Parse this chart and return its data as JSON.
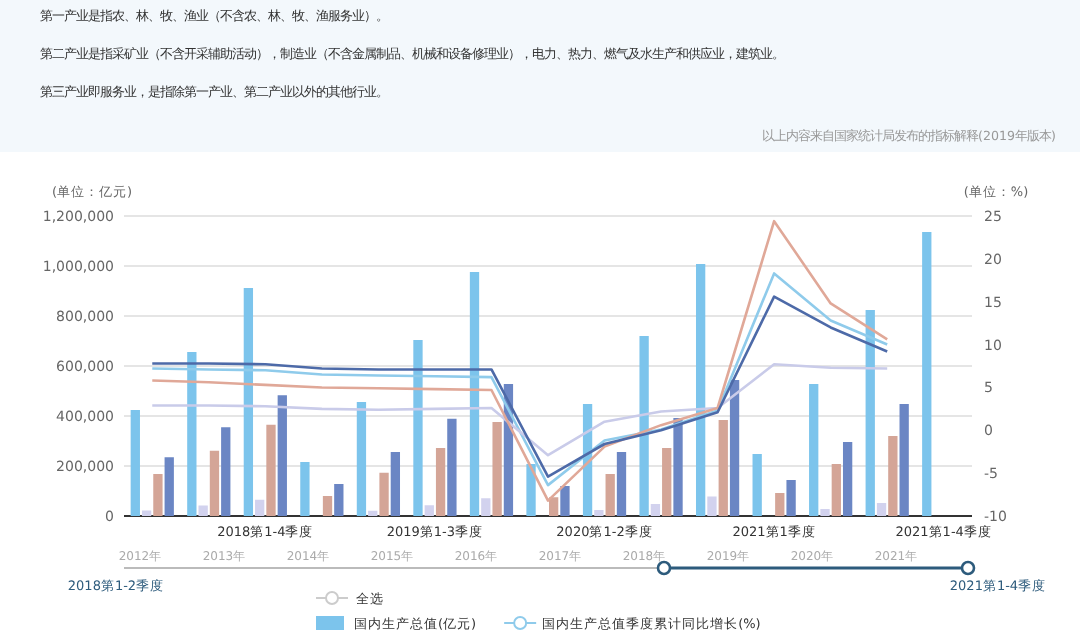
{
  "chart_data": {
    "type": "bar",
    "ylabel": "(单位：亿元)",
    "y2label": "(单位：%)",
    "categories": [
      null,
      null,
      "2018第1-4季度",
      null,
      null,
      "2019第1-3季度",
      null,
      null,
      "2020第1-2季度",
      null,
      null,
      "2021第1季度",
      null,
      null,
      "2021第1-4季度"
    ],
    "series": [
      {
        "name": "国内生产总值(亿元)",
        "type": "bar",
        "color": "#7cc4ec",
        "values": [
          424000,
          656000,
          912000,
          216000,
          456000,
          704000,
          976000,
          208000,
          448000,
          720000,
          1008000,
          248000,
          528000,
          824000,
          1136000
        ]
      },
      {
        "type": "bar",
        "color": "#d2d2ee",
        "values": [
          22000,
          42000,
          65000,
          null,
          21000,
          43000,
          71000,
          null,
          24000,
          48000,
          78000,
          null,
          28000,
          52000,
          null
        ]
      },
      {
        "type": "bar",
        "color": "#d4a597",
        "values": [
          168000,
          261000,
          365000,
          80000,
          173000,
          272000,
          376000,
          75000,
          168000,
          272000,
          384000,
          92000,
          208000,
          320000,
          null
        ]
      },
      {
        "type": "bar",
        "color": "#6b86c4",
        "values": [
          235000,
          355000,
          483000,
          128000,
          256000,
          389000,
          528000,
          120000,
          256000,
          392000,
          544000,
          144000,
          296000,
          448000,
          null
        ]
      },
      {
        "name": "国内生产总值季度累计同比增长(%)",
        "type": "line",
        "axis": "y2",
        "color": "#8fcbeb",
        "values": [
          7.2,
          7.1,
          7.0,
          6.5,
          6.4,
          6.3,
          6.2,
          -6.4,
          -1.2,
          0.1,
          2.3,
          18.3,
          12.8,
          10.0,
          null
        ]
      },
      {
        "type": "line",
        "axis": "y2",
        "color": "#c9cbe9",
        "values": [
          2.9,
          2.9,
          2.8,
          2.5,
          2.4,
          2.5,
          2.6,
          -2.9,
          1.0,
          2.2,
          2.6,
          7.7,
          7.3,
          7.2,
          null
        ]
      },
      {
        "type": "line",
        "axis": "y2",
        "color": "#e0a898",
        "values": [
          5.8,
          5.6,
          5.3,
          5.0,
          4.9,
          4.8,
          4.7,
          -8.2,
          -1.9,
          0.6,
          2.6,
          24.4,
          14.8,
          10.6,
          null
        ]
      },
      {
        "type": "line",
        "axis": "y2",
        "color": "#4d6aa8",
        "values": [
          7.8,
          7.8,
          7.7,
          7.2,
          7.1,
          7.1,
          7.1,
          -5.4,
          -1.6,
          0.0,
          2.1,
          15.6,
          12.0,
          9.2,
          null
        ]
      }
    ],
    "ylim": [
      0,
      1200000
    ],
    "yticks": [
      0,
      {
        "value": 200000,
        "label": "200,000"
      },
      {
        "value": 400000,
        "label": "400,000"
      },
      {
        "value": 600000,
        "label": "600,000"
      },
      {
        "value": 800000,
        "label": "800,000"
      },
      {
        "value": 1000000,
        "label": "1,000,000"
      },
      {
        "value": 1200000,
        "label": "1,200,000"
      }
    ],
    "y2lim": [
      -10,
      25
    ],
    "y2ticks": [
      -10,
      -5,
      0,
      5,
      10,
      15,
      20,
      25
    ],
    "grid": "y",
    "legend": "bottom",
    "annotations": [
      "第一产业是指农、林、牧、渔业（不含农、林、牧、渔服务业）。",
      "第二产业是指采矿业（不含开采辅助活动），制造业（不含金属制品、机械和设备修理业），电力、热力、燃气及水生产和供应业，建筑业。",
      "第三产业即服务业，是指除第一产业、第二产业以外的其他行业。",
      "以上内容来自国家统计局发布的指标解释(2019年版本)",
      "2012年",
      "2013年",
      "2014年",
      "2015年",
      "2016年",
      "2017年",
      "2018年",
      "2019年",
      "2020年",
      "2021年",
      "2018第1-2季度",
      "2021第1-4季度",
      "全选"
    ]
  }
}
